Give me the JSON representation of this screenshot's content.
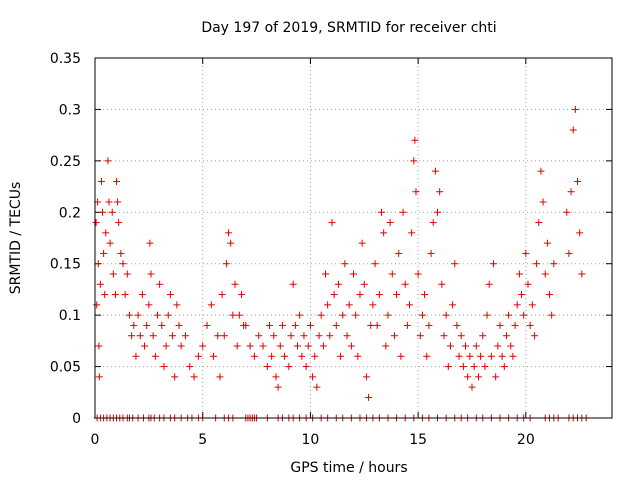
{
  "chart_data": {
    "type": "scatter",
    "title": "Day 197 of 2019, SRMTID for receiver chti",
    "xlabel": "GPS time / hours",
    "ylabel": "SRMTID / TECUs",
    "xlim": [
      0,
      24
    ],
    "ylim": [
      0,
      0.35
    ],
    "xticks": [
      0,
      5,
      10,
      15,
      20
    ],
    "xtick_labels": [
      "0",
      "5",
      "10",
      "15",
      "20"
    ],
    "yticks": [
      0,
      0.05,
      0.1,
      0.15,
      0.2,
      0.25,
      0.3,
      0.35
    ],
    "ytick_labels": [
      "0",
      "0.05",
      "0.1",
      "0.15",
      "0.2",
      "0.25",
      "0.3",
      "0.35"
    ],
    "grid": true,
    "marker": "+",
    "marker_color": "#e00000",
    "series": [
      {
        "name": "SRMTID",
        "points": [
          [
            0.05,
            0.19
          ],
          [
            0.08,
            0.11
          ],
          [
            0.12,
            0.21
          ],
          [
            0.15,
            0.15
          ],
          [
            0.18,
            0.07
          ],
          [
            0.2,
            0.04
          ],
          [
            0.25,
            0.13
          ],
          [
            0.3,
            0.23
          ],
          [
            0.35,
            0.2
          ],
          [
            0.4,
            0.16
          ],
          [
            0.45,
            0.12
          ],
          [
            0.5,
            0.18
          ],
          [
            0.6,
            0.25
          ],
          [
            0.65,
            0.21
          ],
          [
            0.7,
            0.17
          ],
          [
            0.8,
            0.2
          ],
          [
            0.85,
            0.14
          ],
          [
            0.95,
            0.12
          ],
          [
            1.0,
            0.23
          ],
          [
            1.05,
            0.21
          ],
          [
            1.1,
            0.19
          ],
          [
            1.2,
            0.16
          ],
          [
            1.3,
            0.15
          ],
          [
            1.4,
            0.12
          ],
          [
            1.5,
            0.14
          ],
          [
            1.6,
            0.1
          ],
          [
            1.7,
            0.08
          ],
          [
            1.8,
            0.09
          ],
          [
            1.9,
            0.06
          ],
          [
            2.0,
            0.1
          ],
          [
            2.1,
            0.08
          ],
          [
            2.2,
            0.12
          ],
          [
            2.3,
            0.07
          ],
          [
            2.4,
            0.09
          ],
          [
            2.5,
            0.11
          ],
          [
            2.55,
            0.17
          ],
          [
            2.6,
            0.14
          ],
          [
            2.7,
            0.08
          ],
          [
            2.8,
            0.06
          ],
          [
            2.9,
            0.1
          ],
          [
            3.0,
            0.13
          ],
          [
            3.1,
            0.09
          ],
          [
            3.2,
            0.05
          ],
          [
            3.3,
            0.07
          ],
          [
            3.4,
            0.1
          ],
          [
            3.5,
            0.12
          ],
          [
            3.6,
            0.08
          ],
          [
            3.7,
            0.04
          ],
          [
            3.8,
            0.11
          ],
          [
            3.9,
            0.09
          ],
          [
            4.0,
            0.07
          ],
          [
            4.2,
            0.08
          ],
          [
            4.4,
            0.05
          ],
          [
            4.6,
            0.04
          ],
          [
            4.8,
            0.06
          ],
          [
            5.0,
            0.07
          ],
          [
            5.2,
            0.09
          ],
          [
            5.4,
            0.11
          ],
          [
            5.5,
            0.06
          ],
          [
            5.7,
            0.08
          ],
          [
            5.8,
            0.04
          ],
          [
            5.9,
            0.12
          ],
          [
            6.0,
            0.08
          ],
          [
            6.1,
            0.15
          ],
          [
            6.2,
            0.18
          ],
          [
            6.3,
            0.17
          ],
          [
            6.4,
            0.1
          ],
          [
            6.5,
            0.13
          ],
          [
            6.6,
            0.07
          ],
          [
            6.7,
            0.1
          ],
          [
            6.8,
            0.12
          ],
          [
            6.9,
            0.09
          ],
          [
            7.0,
            0.09
          ],
          [
            7.2,
            0.07
          ],
          [
            7.4,
            0.06
          ],
          [
            7.6,
            0.08
          ],
          [
            7.8,
            0.07
          ],
          [
            8.0,
            0.05
          ],
          [
            8.1,
            0.09
          ],
          [
            8.2,
            0.06
          ],
          [
            8.3,
            0.08
          ],
          [
            8.4,
            0.04
          ],
          [
            8.5,
            0.03
          ],
          [
            8.6,
            0.07
          ],
          [
            8.7,
            0.09
          ],
          [
            8.8,
            0.06
          ],
          [
            9.0,
            0.05
          ],
          [
            9.1,
            0.08
          ],
          [
            9.2,
            0.13
          ],
          [
            9.3,
            0.09
          ],
          [
            9.4,
            0.07
          ],
          [
            9.5,
            0.1
          ],
          [
            9.6,
            0.06
          ],
          [
            9.7,
            0.08
          ],
          [
            9.8,
            0.05
          ],
          [
            9.9,
            0.07
          ],
          [
            10.0,
            0.09
          ],
          [
            10.1,
            0.04
          ],
          [
            10.2,
            0.06
          ],
          [
            10.3,
            0.03
          ],
          [
            10.4,
            0.08
          ],
          [
            10.5,
            0.1
          ],
          [
            10.6,
            0.07
          ],
          [
            10.7,
            0.14
          ],
          [
            10.8,
            0.11
          ],
          [
            10.9,
            0.08
          ],
          [
            11.0,
            0.19
          ],
          [
            11.1,
            0.12
          ],
          [
            11.2,
            0.09
          ],
          [
            11.3,
            0.13
          ],
          [
            11.4,
            0.06
          ],
          [
            11.5,
            0.1
          ],
          [
            11.6,
            0.15
          ],
          [
            11.7,
            0.08
          ],
          [
            11.8,
            0.11
          ],
          [
            11.9,
            0.07
          ],
          [
            12.0,
            0.14
          ],
          [
            12.1,
            0.1
          ],
          [
            12.2,
            0.06
          ],
          [
            12.3,
            0.12
          ],
          [
            12.4,
            0.17
          ],
          [
            12.5,
            0.13
          ],
          [
            12.6,
            0.04
          ],
          [
            12.7,
            0.02
          ],
          [
            12.8,
            0.09
          ],
          [
            12.9,
            0.11
          ],
          [
            13.0,
            0.15
          ],
          [
            13.1,
            0.09
          ],
          [
            13.2,
            0.12
          ],
          [
            13.3,
            0.2
          ],
          [
            13.4,
            0.18
          ],
          [
            13.5,
            0.07
          ],
          [
            13.6,
            0.1
          ],
          [
            13.7,
            0.19
          ],
          [
            13.8,
            0.14
          ],
          [
            13.9,
            0.08
          ],
          [
            14.0,
            0.12
          ],
          [
            14.1,
            0.16
          ],
          [
            14.2,
            0.06
          ],
          [
            14.3,
            0.2
          ],
          [
            14.4,
            0.13
          ],
          [
            14.5,
            0.09
          ],
          [
            14.6,
            0.11
          ],
          [
            14.7,
            0.18
          ],
          [
            14.8,
            0.25
          ],
          [
            14.85,
            0.27
          ],
          [
            14.9,
            0.22
          ],
          [
            15.0,
            0.14
          ],
          [
            15.1,
            0.08
          ],
          [
            15.2,
            0.1
          ],
          [
            15.3,
            0.12
          ],
          [
            15.4,
            0.06
          ],
          [
            15.5,
            0.09
          ],
          [
            15.6,
            0.16
          ],
          [
            15.7,
            0.19
          ],
          [
            15.8,
            0.24
          ],
          [
            15.9,
            0.2
          ],
          [
            16.0,
            0.22
          ],
          [
            16.1,
            0.13
          ],
          [
            16.2,
            0.08
          ],
          [
            16.3,
            0.1
          ],
          [
            16.4,
            0.05
          ],
          [
            16.5,
            0.07
          ],
          [
            16.6,
            0.11
          ],
          [
            16.7,
            0.15
          ],
          [
            16.8,
            0.09
          ],
          [
            16.9,
            0.06
          ],
          [
            17.0,
            0.08
          ],
          [
            17.1,
            0.05
          ],
          [
            17.2,
            0.07
          ],
          [
            17.3,
            0.04
          ],
          [
            17.4,
            0.06
          ],
          [
            17.5,
            0.03
          ],
          [
            17.6,
            0.05
          ],
          [
            17.7,
            0.07
          ],
          [
            17.8,
            0.04
          ],
          [
            17.9,
            0.06
          ],
          [
            18.0,
            0.08
          ],
          [
            18.1,
            0.05
          ],
          [
            18.2,
            0.1
          ],
          [
            18.3,
            0.13
          ],
          [
            18.4,
            0.06
          ],
          [
            18.5,
            0.15
          ],
          [
            18.6,
            0.04
          ],
          [
            18.7,
            0.07
          ],
          [
            18.8,
            0.09
          ],
          [
            18.9,
            0.06
          ],
          [
            19.0,
            0.05
          ],
          [
            19.1,
            0.08
          ],
          [
            19.2,
            0.1
          ],
          [
            19.3,
            0.07
          ],
          [
            19.4,
            0.06
          ],
          [
            19.5,
            0.09
          ],
          [
            19.6,
            0.11
          ],
          [
            19.7,
            0.14
          ],
          [
            19.8,
            0.12
          ],
          [
            19.9,
            0.1
          ],
          [
            20.0,
            0.16
          ],
          [
            20.1,
            0.13
          ],
          [
            20.2,
            0.09
          ],
          [
            20.3,
            0.11
          ],
          [
            20.4,
            0.08
          ],
          [
            20.5,
            0.15
          ],
          [
            20.6,
            0.19
          ],
          [
            20.7,
            0.24
          ],
          [
            20.8,
            0.21
          ],
          [
            20.9,
            0.14
          ],
          [
            21.0,
            0.17
          ],
          [
            21.1,
            0.12
          ],
          [
            21.2,
            0.1
          ],
          [
            21.3,
            0.15
          ],
          [
            21.9,
            0.2
          ],
          [
            22.0,
            0.16
          ],
          [
            22.1,
            0.22
          ],
          [
            22.2,
            0.28
          ],
          [
            22.3,
            0.3
          ],
          [
            22.4,
            0.23
          ],
          [
            22.5,
            0.18
          ],
          [
            22.6,
            0.14
          ]
        ]
      }
    ],
    "zero_points_x": [
      0.1,
      0.25,
      0.4,
      0.55,
      0.7,
      0.85,
      1.0,
      1.15,
      1.3,
      1.5,
      1.6,
      1.75,
      2.0,
      2.25,
      2.5,
      2.6,
      2.75,
      3.0,
      3.2,
      3.5,
      3.7,
      4.0,
      4.3,
      4.5,
      4.8,
      5.0,
      5.6,
      6.0,
      6.2,
      6.4,
      7.0,
      7.1,
      7.2,
      7.3,
      7.4,
      7.5,
      8.0,
      8.5,
      8.7,
      9.0,
      9.2,
      9.5,
      9.8,
      10.1,
      10.5,
      10.8,
      11.2,
      11.5,
      11.9,
      12.3,
      12.6,
      12.9,
      13.2,
      13.6,
      14.0,
      14.4,
      14.8,
      15.2,
      15.5,
      15.9,
      16.3,
      16.7,
      17.0,
      17.3,
      17.7,
      18.0,
      18.4,
      18.8,
      19.2,
      19.6,
      19.9,
      20.2,
      20.9,
      21.1,
      21.3,
      21.5,
      22.0,
      22.2,
      22.4,
      22.6,
      22.8
    ]
  }
}
